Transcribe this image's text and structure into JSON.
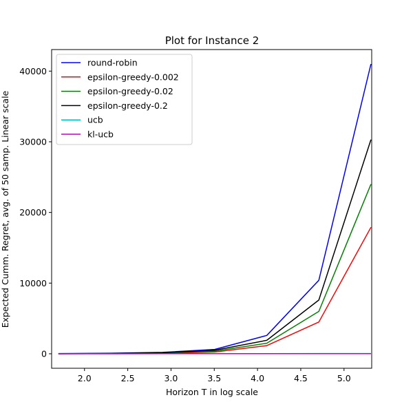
{
  "chart_data": {
    "type": "line",
    "title": "Plot for Instance 2",
    "xlabel": "Horizon T in log scale",
    "ylabel": "Expected Cumm. Regret, avg. of 50 samp. Linear scale",
    "xlim": [
      1.62,
      5.32
    ],
    "ylim": [
      -2050,
      43050
    ],
    "xticks": [
      2.0,
      2.5,
      3.0,
      3.5,
      4.0,
      4.5,
      5.0
    ],
    "xtick_labels": [
      "2.0",
      "2.5",
      "3.0",
      "3.5",
      "4.0",
      "4.5",
      "5.0"
    ],
    "yticks": [
      0,
      10000,
      20000,
      30000,
      40000
    ],
    "ytick_labels": [
      "0",
      "10000",
      "20000",
      "30000",
      "40000"
    ],
    "x": [
      1.699,
      2.301,
      2.903,
      3.505,
      4.107,
      4.709,
      5.311
    ],
    "legend_position": "upper-left",
    "grid": false,
    "series": [
      {
        "name": "round-robin",
        "color": "#0000ff",
        "values": [
          30,
          80,
          200,
          620,
          2600,
          10400,
          41000
        ]
      },
      {
        "name": "epsilon-greedy-0.002",
        "color": "#ff0000",
        "values": [
          5,
          20,
          60,
          250,
          1150,
          4500,
          17900
        ]
      },
      {
        "name": "epsilon-greedy-0.02",
        "color": "#008000",
        "values": [
          5,
          30,
          100,
          380,
          1500,
          6000,
          24000
        ]
      },
      {
        "name": "epsilon-greedy-0.2",
        "color": "#000000",
        "values": [
          10,
          45,
          150,
          500,
          1900,
          7600,
          30300
        ]
      },
      {
        "name": "ucb",
        "color": "#00bfbf",
        "values": [
          5,
          10,
          15,
          20,
          25,
          30,
          35
        ]
      },
      {
        "name": "kl-ucb",
        "color": "#bf00bf",
        "values": [
          5,
          8,
          12,
          16,
          20,
          24,
          28
        ]
      }
    ]
  }
}
